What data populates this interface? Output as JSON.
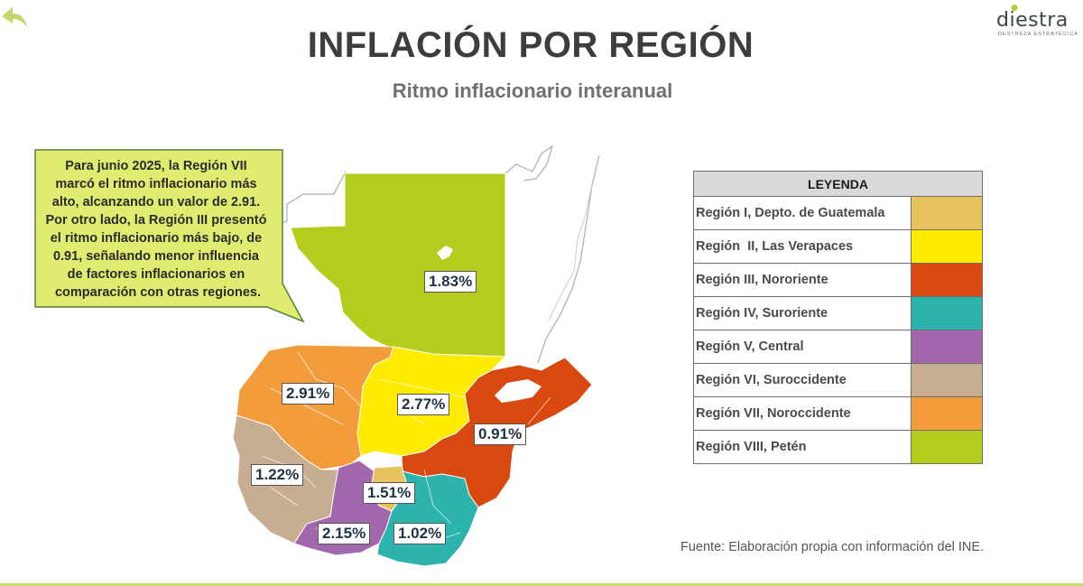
{
  "header": {
    "title": "INFLACIÓN POR REGIÓN",
    "subtitle": "Ritmo inflacionario interanual"
  },
  "logo": {
    "name": "diestra",
    "tagline": "DESTREZA ESTRATÉGICA"
  },
  "callout": {
    "lines": [
      "Para junio 2025, la Región VII",
      "marcó el ritmo inflacionario más",
      "alto, alcanzando un valor de 2.91.",
      "Por otro lado, la Región III presentó",
      "el ritmo inflacionario más bajo, de",
      "0.91, señalando menor influencia",
      "de factores inflacionarios en",
      "comparación con otras regiones."
    ]
  },
  "map": {
    "regions": [
      {
        "id": "VIII",
        "value": 1.83,
        "label": "1.83%"
      },
      {
        "id": "VII",
        "value": 2.91,
        "label": "2.91%"
      },
      {
        "id": "II",
        "value": 2.77,
        "label": "2.77%"
      },
      {
        "id": "III",
        "value": 0.91,
        "label": "0.91%"
      },
      {
        "id": "VI",
        "value": 1.22,
        "label": "1.22%"
      },
      {
        "id": "I",
        "value": 1.51,
        "label": "1.51%"
      },
      {
        "id": "V",
        "value": 2.15,
        "label": "2.15%"
      },
      {
        "id": "IV",
        "value": 1.02,
        "label": "1.02%"
      }
    ]
  },
  "legend": {
    "header": "LEYENDA",
    "items": [
      {
        "label": "Región I, Depto. de Guatemala",
        "color": "#e8c35d"
      },
      {
        "label": "Región  II, Las Verapaces",
        "color": "#ffeb00"
      },
      {
        "label": "Región III, Nororiente",
        "color": "#d9480f"
      },
      {
        "label": "Región IV, Suroriente",
        "color": "#2db3ad"
      },
      {
        "label": "Región V, Central",
        "color": "#a367ad"
      },
      {
        "label": "Región VI, Suroccidente",
        "color": "#c7ae92"
      },
      {
        "label": "Región VII, Noroccidente",
        "color": "#f39c3c"
      },
      {
        "label": "Región VIII, Petén",
        "color": "#b5cc1c"
      }
    ]
  },
  "source": "Fuente: Elaboración propia con información del INE.",
  "colors": {
    "accent": "#b5cc2e",
    "callout_fill": "#e0ec6f",
    "callout_border": "#5a7d3a"
  }
}
